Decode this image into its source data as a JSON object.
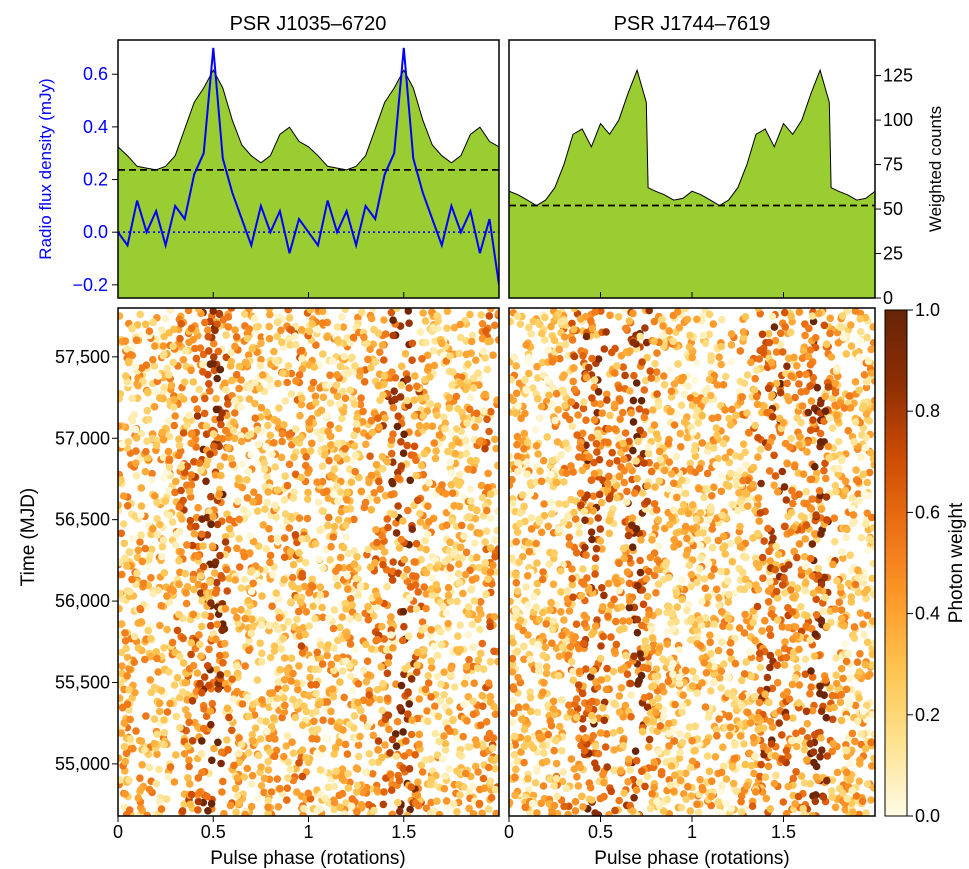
{
  "chart_data": {
    "type": "scatter",
    "panels": [
      {
        "id": "J1035",
        "title": "PSR J1035–6720",
        "profile": {
          "type": "area",
          "xlim": [
            0,
            2
          ],
          "ylim_counts": [
            0,
            145
          ],
          "ylim_radio": [
            -0.25,
            0.73
          ],
          "ylabel_radio": "Radio flux density (mJy)",
          "radio_yticks": [
            "−0.2",
            "0.0",
            "0.2",
            "0.4",
            "0.6"
          ],
          "radio_ytick_values": [
            -0.2,
            0.0,
            0.2,
            0.4,
            0.6
          ],
          "background_level": 72,
          "radio_baseline": 0.0,
          "gamma_phase": [
            0.0,
            0.05,
            0.1,
            0.15,
            0.2,
            0.25,
            0.3,
            0.35,
            0.4,
            0.45,
            0.5,
            0.55,
            0.6,
            0.65,
            0.7,
            0.75,
            0.8,
            0.85,
            0.9,
            0.95,
            1.0,
            1.05,
            1.1,
            1.15,
            1.2,
            1.25,
            1.3,
            1.35,
            1.4,
            1.45,
            1.5,
            1.55,
            1.6,
            1.65,
            1.7,
            1.75,
            1.8,
            1.85,
            1.9,
            1.95,
            2.0
          ],
          "gamma_counts": [
            85,
            80,
            74,
            73,
            72,
            74,
            80,
            95,
            110,
            118,
            128,
            118,
            100,
            86,
            80,
            76,
            80,
            92,
            96,
            88,
            85,
            80,
            74,
            73,
            72,
            74,
            80,
            95,
            110,
            118,
            128,
            118,
            100,
            86,
            80,
            76,
            80,
            92,
            96,
            88,
            85
          ],
          "radio_phase": [
            0.0,
            0.05,
            0.1,
            0.15,
            0.2,
            0.25,
            0.3,
            0.35,
            0.4,
            0.45,
            0.5,
            0.55,
            0.6,
            0.65,
            0.7,
            0.75,
            0.8,
            0.85,
            0.9,
            0.95,
            1.0,
            1.05,
            1.1,
            1.15,
            1.2,
            1.25,
            1.3,
            1.35,
            1.4,
            1.45,
            1.5,
            1.55,
            1.6,
            1.65,
            1.7,
            1.75,
            1.8,
            1.85,
            1.9,
            1.95,
            2.0
          ],
          "radio_flux": [
            0.0,
            -0.05,
            0.12,
            0.0,
            0.08,
            -0.05,
            0.1,
            0.05,
            0.22,
            0.3,
            0.7,
            0.28,
            0.15,
            0.05,
            -0.05,
            0.1,
            0.0,
            0.08,
            -0.08,
            0.05,
            0.0,
            -0.05,
            0.12,
            0.0,
            0.08,
            -0.05,
            0.1,
            0.05,
            0.22,
            0.3,
            0.7,
            0.28,
            0.15,
            0.05,
            -0.05,
            0.1,
            0.0,
            0.08,
            -0.08,
            0.05,
            -0.2
          ]
        },
        "scatter": {
          "xlabel": "Pulse phase (rotations)",
          "xlim": [
            0,
            2
          ],
          "xticks": [
            "0",
            "0.5",
            "1",
            "1.5"
          ],
          "xtick_values": [
            0,
            0.5,
            1,
            1.5
          ]
        }
      },
      {
        "id": "J1744",
        "title": "PSR J1744–7619",
        "profile": {
          "type": "area",
          "xlim": [
            0,
            2
          ],
          "ylim_counts": [
            0,
            145
          ],
          "ylabel_counts": "Weighted counts",
          "counts_yticks": [
            "0",
            "25",
            "50",
            "75",
            "100",
            "125"
          ],
          "counts_ytick_values": [
            0,
            25,
            50,
            75,
            100,
            125
          ],
          "background_level": 52,
          "gamma_phase": [
            0.0,
            0.05,
            0.1,
            0.15,
            0.2,
            0.25,
            0.3,
            0.35,
            0.4,
            0.45,
            0.5,
            0.55,
            0.6,
            0.65,
            0.7,
            0.75,
            0.76,
            0.8,
            0.85,
            0.9,
            0.95,
            1.0,
            1.05,
            1.1,
            1.15,
            1.2,
            1.25,
            1.3,
            1.35,
            1.4,
            1.45,
            1.5,
            1.55,
            1.6,
            1.65,
            1.7,
            1.75,
            1.76,
            1.8,
            1.85,
            1.9,
            1.95,
            2.0
          ],
          "gamma_counts": [
            60,
            58,
            55,
            52,
            55,
            62,
            75,
            92,
            95,
            85,
            98,
            92,
            100,
            115,
            128,
            110,
            62,
            60,
            58,
            55,
            56,
            60,
            58,
            55,
            52,
            55,
            62,
            75,
            92,
            95,
            85,
            98,
            92,
            100,
            115,
            128,
            110,
            62,
            60,
            58,
            55,
            56,
            60
          ]
        },
        "scatter": {
          "xlabel": "Pulse phase (rotations)",
          "xlim": [
            0,
            2
          ],
          "xticks": [
            "0",
            "0.5",
            "1",
            "1.5"
          ],
          "xtick_values": [
            0,
            0.5,
            1,
            1.5
          ]
        }
      }
    ],
    "time_axis": {
      "ylabel": "Time (MJD)",
      "ylim": [
        54680,
        57800
      ],
      "yticks": [
        "55,000",
        "55,500",
        "56,000",
        "56,500",
        "57,000",
        "57,500"
      ],
      "ytick_values": [
        55000,
        55500,
        56000,
        56500,
        57000,
        57500
      ]
    },
    "colorbar": {
      "label": "Photon weight",
      "range": [
        0,
        1
      ],
      "ticks": [
        "0.0",
        "0.2",
        "0.4",
        "0.6",
        "0.8",
        "1.0"
      ],
      "tick_values": [
        0,
        0.2,
        0.4,
        0.6,
        0.8,
        1.0
      ],
      "colors": [
        "#fffbe5",
        "#fee391",
        "#fec44f",
        "#fe9929",
        "#ec7014",
        "#cc4c02",
        "#8c2d04",
        "#662506"
      ]
    },
    "colors": {
      "fill": "#9acd32",
      "radio_line": "#0000ff",
      "radio_label": "#0000ff"
    }
  }
}
